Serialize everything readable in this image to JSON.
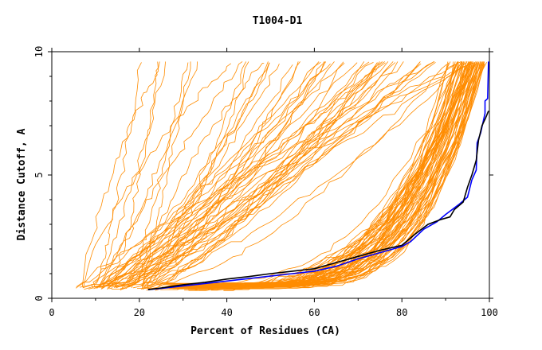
{
  "chart_data": {
    "type": "line",
    "title": "T1004-D1",
    "xlabel": "Percent of Residues (CA)",
    "ylabel": "Distance Cutoff, A",
    "xlim": [
      0,
      100
    ],
    "ylim": [
      0,
      10
    ],
    "x_ticks": [
      "0",
      "20",
      "40",
      "60",
      "80",
      "100"
    ],
    "y_ticks": [
      "0",
      "5",
      "10"
    ],
    "grid": false,
    "colors": {
      "background_models": "#ff8c00",
      "highlight_blue": "#0000ff",
      "highlight_black": "#000000",
      "axis": "#000000"
    },
    "bundle_families": [
      {
        "name": "poor-models",
        "count": 55,
        "start_x": [
          5,
          22
        ],
        "end_x": [
          20,
          96
        ],
        "start_y": [
          0.3,
          0.5
        ],
        "max_y": 9.6,
        "shape": [
          0.6,
          1.6
        ]
      },
      {
        "name": "good-models",
        "count": 65,
        "start_x": [
          22,
          40
        ],
        "end_x": [
          90,
          99
        ],
        "start_y": [
          0.3,
          0.5
        ],
        "max_y": 9.6,
        "shape": [
          2.8,
          5.5
        ]
      }
    ],
    "series": [
      {
        "name": "highlight-blue",
        "color": "#0000ff",
        "points": [
          [
            22,
            0.35
          ],
          [
            25,
            0.4
          ],
          [
            30,
            0.5
          ],
          [
            35,
            0.6
          ],
          [
            40,
            0.7
          ],
          [
            45,
            0.8
          ],
          [
            50,
            0.9
          ],
          [
            55,
            1.0
          ],
          [
            60,
            1.1
          ],
          [
            65,
            1.3
          ],
          [
            70,
            1.6
          ],
          [
            75,
            1.85
          ],
          [
            80,
            2.1
          ],
          [
            82,
            2.3
          ],
          [
            85,
            2.8
          ],
          [
            88,
            3.1
          ],
          [
            90,
            3.4
          ],
          [
            93,
            3.8
          ],
          [
            95,
            4.1
          ],
          [
            96,
            4.8
          ],
          [
            97,
            5.2
          ],
          [
            97.2,
            6.3
          ],
          [
            98,
            6.7
          ],
          [
            99,
            7.5
          ],
          [
            99,
            8.0
          ],
          [
            99.6,
            8.1
          ],
          [
            99.8,
            9.6
          ]
        ]
      },
      {
        "name": "highlight-black",
        "color": "#000000",
        "points": [
          [
            22,
            0.35
          ],
          [
            25,
            0.42
          ],
          [
            30,
            0.55
          ],
          [
            35,
            0.65
          ],
          [
            40,
            0.78
          ],
          [
            45,
            0.88
          ],
          [
            50,
            1.0
          ],
          [
            55,
            1.1
          ],
          [
            60,
            1.2
          ],
          [
            65,
            1.45
          ],
          [
            70,
            1.7
          ],
          [
            75,
            1.95
          ],
          [
            80,
            2.15
          ],
          [
            83,
            2.6
          ],
          [
            86,
            3.0
          ],
          [
            89,
            3.2
          ],
          [
            91,
            3.3
          ],
          [
            92,
            3.6
          ],
          [
            94,
            3.9
          ],
          [
            95,
            4.5
          ],
          [
            96,
            5.0
          ],
          [
            97,
            5.6
          ],
          [
            97.5,
            6.4
          ],
          [
            98.3,
            7.0
          ],
          [
            99.1,
            7.3
          ],
          [
            99.8,
            7.6
          ]
        ]
      }
    ]
  }
}
